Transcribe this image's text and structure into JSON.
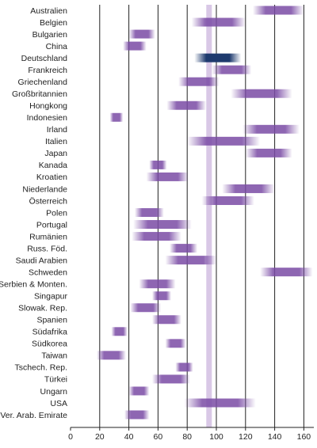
{
  "chart_data": {
    "type": "bar",
    "subtype": "range",
    "title": "",
    "xlabel": "",
    "ylabel": "",
    "xlim": [
      0,
      168
    ],
    "xticks": [
      0,
      20,
      40,
      60,
      80,
      100,
      120,
      140,
      160
    ],
    "grid": true,
    "reference_line": 95,
    "colors": {
      "bar": "#7a4ba5",
      "highlight": "#1e3a6e",
      "reference": "#d9c8e6",
      "grid": "#222222"
    },
    "highlight_category": "Deutschland",
    "categories": [
      "Australien",
      "Belgien",
      "Bulgarien",
      "China",
      "Deutschland",
      "Frankreich",
      "Griechenland",
      "Großbritannien",
      "Hongkong",
      "Indonesien",
      "Irland",
      "Italien",
      "Japan",
      "Kanada",
      "Kroatien",
      "Niederlande",
      "Österreich",
      "Polen",
      "Portugal",
      "Rumänien",
      "Russ. Föd.",
      "Saudi Arabien",
      "Schweden",
      "Serbien & Monten.",
      "Singapur",
      "Slowak. Rep.",
      "Spanien",
      "Südafrika",
      "Südkorea",
      "Taiwan",
      "Tschech. Rep.",
      "Türkei",
      "Ungarn",
      "USA",
      "Ver. Arab. Emirate"
    ],
    "ranges": [
      [
        125,
        160
      ],
      [
        83,
        120
      ],
      [
        40,
        58
      ],
      [
        36,
        52
      ],
      [
        85,
        117
      ],
      [
        97,
        124
      ],
      [
        74,
        102
      ],
      [
        110,
        152
      ],
      [
        66,
        93
      ],
      [
        27,
        36
      ],
      [
        118,
        157
      ],
      [
        80,
        130
      ],
      [
        120,
        152
      ],
      [
        54,
        66
      ],
      [
        52,
        81
      ],
      [
        104,
        140
      ],
      [
        90,
        126
      ],
      [
        44,
        64
      ],
      [
        43,
        83
      ],
      [
        42,
        76
      ],
      [
        68,
        87
      ],
      [
        65,
        100
      ],
      [
        130,
        166
      ],
      [
        47,
        72
      ],
      [
        56,
        69
      ],
      [
        41,
        62
      ],
      [
        56,
        76
      ],
      [
        28,
        39
      ],
      [
        65,
        79
      ],
      [
        18,
        38
      ],
      [
        72,
        84
      ],
      [
        56,
        82
      ],
      [
        40,
        54
      ],
      [
        78,
        127
      ],
      [
        37,
        54
      ]
    ]
  }
}
